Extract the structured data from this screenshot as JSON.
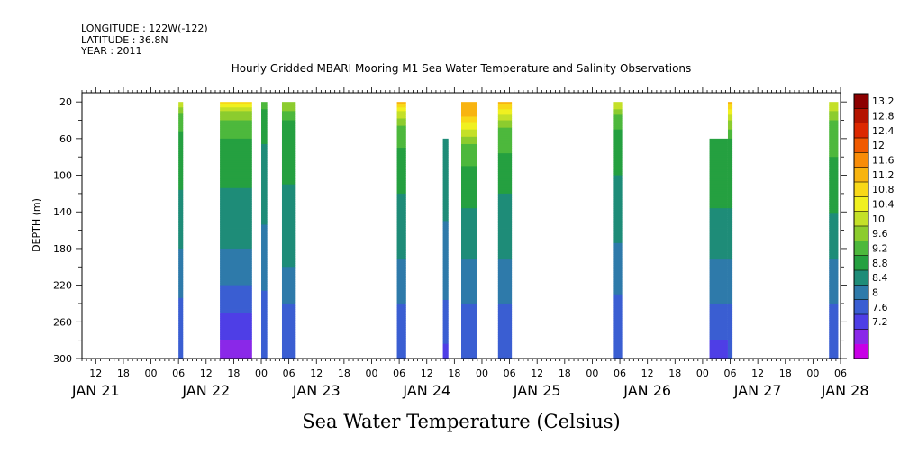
{
  "chart_data": {
    "type": "heatmap",
    "title": "Hourly Gridded MBARI Mooring M1 Sea Water Temperature and Salinity Observations",
    "header": [
      "LONGITUDE : 122W(-122)",
      "LATITUDE : 36.8N",
      "YEAR : 2011"
    ],
    "xlabel": "Sea Water Temperature (Celsius)",
    "ylabel": "DEPTH (m)",
    "x_start_hour": 9,
    "x_end_hour": 174,
    "hour_ticks": [
      {
        "h": 12,
        "label": "12"
      },
      {
        "h": 18,
        "label": "18"
      },
      {
        "h": 24,
        "label": "00"
      },
      {
        "h": 30,
        "label": "06"
      },
      {
        "h": 36,
        "label": "12"
      },
      {
        "h": 42,
        "label": "18"
      },
      {
        "h": 48,
        "label": "00"
      },
      {
        "h": 54,
        "label": "06"
      },
      {
        "h": 60,
        "label": "12"
      },
      {
        "h": 66,
        "label": "18"
      },
      {
        "h": 72,
        "label": "00"
      },
      {
        "h": 78,
        "label": "06"
      },
      {
        "h": 84,
        "label": "12"
      },
      {
        "h": 90,
        "label": "18"
      },
      {
        "h": 96,
        "label": "00"
      },
      {
        "h": 102,
        "label": "06"
      },
      {
        "h": 108,
        "label": "12"
      },
      {
        "h": 114,
        "label": "18"
      },
      {
        "h": 120,
        "label": "00"
      },
      {
        "h": 126,
        "label": "06"
      },
      {
        "h": 132,
        "label": "12"
      },
      {
        "h": 138,
        "label": "18"
      },
      {
        "h": 144,
        "label": "00"
      },
      {
        "h": 150,
        "label": "06"
      },
      {
        "h": 156,
        "label": "12"
      },
      {
        "h": 162,
        "label": "18"
      },
      {
        "h": 168,
        "label": "00"
      },
      {
        "h": 174,
        "label": "06"
      }
    ],
    "day_labels": [
      {
        "h": 12,
        "label": "JAN 21"
      },
      {
        "h": 36,
        "label": "JAN 22"
      },
      {
        "h": 60,
        "label": "JAN 23"
      },
      {
        "h": 84,
        "label": "JAN 24"
      },
      {
        "h": 108,
        "label": "JAN 25"
      },
      {
        "h": 132,
        "label": "JAN 26"
      },
      {
        "h": 156,
        "label": "JAN 27"
      },
      {
        "h": 175,
        "label": "JAN 28"
      }
    ],
    "y_ticks": [
      20,
      60,
      100,
      140,
      180,
      220,
      260,
      300
    ],
    "y_range": [
      10,
      300
    ],
    "levels": [
      7.2,
      7.6,
      8,
      8.4,
      8.8,
      9.2,
      9.6,
      10,
      10.4,
      10.8,
      11.2,
      11.6,
      12,
      12.4,
      12.8,
      13.2
    ],
    "colorbar_labels": [
      "13.2",
      "12.8",
      "12.4",
      "12",
      "11.6",
      "11.2",
      "10.8",
      "10.4",
      "10",
      "9.6",
      "9.2",
      "8.8",
      "8.4",
      "8",
      "7.6",
      "7.2"
    ],
    "colors": [
      "#c800e6",
      "#8a28e8",
      "#4e3ee6",
      "#3a5ed2",
      "#2e7aaa",
      "#1e8c78",
      "#25a040",
      "#4db83c",
      "#8ccc2e",
      "#c4e028",
      "#f0f020",
      "#f8d818",
      "#f8b410",
      "#f88c08",
      "#f05a00",
      "#dc2800",
      "#b41400",
      "#8c0000"
    ],
    "columns": [
      {
        "h0": 30.0,
        "h1": 31.0,
        "top": 20,
        "profile": [
          [
            20,
            10.8
          ],
          [
            35,
            9.8
          ],
          [
            60,
            9.5
          ],
          [
            90,
            9.3
          ],
          [
            140,
            9.1
          ],
          [
            180,
            8.8
          ],
          [
            220,
            8.5
          ],
          [
            260,
            8.2
          ],
          [
            300,
            8.0
          ]
        ]
      },
      {
        "h0": 39.0,
        "h1": 46.0,
        "top": 20,
        "profile": [
          [
            20,
            11.5
          ],
          [
            30,
            10.3
          ],
          [
            50,
            9.7
          ],
          [
            80,
            9.4
          ],
          [
            130,
            9.1
          ],
          [
            180,
            8.8
          ],
          [
            220,
            8.4
          ],
          [
            250,
            8.0
          ],
          [
            280,
            7.6
          ],
          [
            300,
            7.4
          ]
        ]
      },
      {
        "h0": 48.0,
        "h1": 49.3,
        "top": 20,
        "profile": [
          [
            20,
            9.7
          ],
          [
            50,
            9.3
          ],
          [
            100,
            9.0
          ],
          [
            180,
            8.7
          ],
          [
            240,
            8.3
          ],
          [
            300,
            8.0
          ]
        ]
      },
      {
        "h0": 52.5,
        "h1": 55.5,
        "top": 20,
        "profile": [
          [
            20,
            10.4
          ],
          [
            40,
            9.6
          ],
          [
            80,
            9.3
          ],
          [
            140,
            9.1
          ],
          [
            200,
            8.8
          ],
          [
            250,
            8.3
          ],
          [
            300,
            8.0
          ]
        ]
      },
      {
        "h0": 77.5,
        "h1": 79.5,
        "top": 20,
        "profile": [
          [
            20,
            11.8
          ],
          [
            30,
            10.8
          ],
          [
            50,
            9.8
          ],
          [
            100,
            9.3
          ],
          [
            180,
            8.9
          ],
          [
            240,
            8.4
          ],
          [
            300,
            8.0
          ]
        ]
      },
      {
        "h0": 87.5,
        "h1": 88.7,
        "top": 60,
        "profile": [
          [
            60,
            9.1
          ],
          [
            150,
            8.8
          ],
          [
            220,
            8.5
          ],
          [
            280,
            8.1
          ],
          [
            300,
            7.6
          ]
        ]
      },
      {
        "h0": 91.5,
        "h1": 95.0,
        "top": 20,
        "profile": [
          [
            20,
            12.0
          ],
          [
            35,
            11.6
          ],
          [
            50,
            10.8
          ],
          [
            70,
            9.8
          ],
          [
            120,
            9.3
          ],
          [
            180,
            8.9
          ],
          [
            240,
            8.4
          ],
          [
            300,
            8.0
          ]
        ]
      },
      {
        "h0": 99.5,
        "h1": 102.5,
        "top": 20,
        "profile": [
          [
            20,
            11.8
          ],
          [
            30,
            11.0
          ],
          [
            50,
            9.9
          ],
          [
            100,
            9.3
          ],
          [
            180,
            8.9
          ],
          [
            240,
            8.4
          ],
          [
            300,
            8.0
          ]
        ]
      },
      {
        "h0": 124.5,
        "h1": 126.5,
        "top": 20,
        "profile": [
          [
            20,
            10.8
          ],
          [
            40,
            9.7
          ],
          [
            80,
            9.3
          ],
          [
            160,
            8.9
          ],
          [
            230,
            8.4
          ],
          [
            300,
            8.0
          ]
        ]
      },
      {
        "h0": 145.5,
        "h1": 149.5,
        "top": 60,
        "profile": [
          [
            60,
            9.6
          ],
          [
            80,
            9.5
          ],
          [
            120,
            9.3
          ],
          [
            180,
            8.9
          ],
          [
            240,
            8.4
          ],
          [
            280,
            8.0
          ],
          [
            300,
            7.9
          ]
        ]
      },
      {
        "h0": 149.5,
        "h1": 150.5,
        "top": 20,
        "profile": [
          [
            20,
            11.8
          ],
          [
            40,
            10.4
          ],
          [
            60,
            9.6
          ],
          [
            120,
            9.3
          ],
          [
            180,
            8.9
          ],
          [
            240,
            8.4
          ],
          [
            300,
            8.0
          ]
        ]
      },
      {
        "h0": 171.5,
        "h1": 173.5,
        "top": 20,
        "profile": [
          [
            20,
            10.8
          ],
          [
            40,
            10.0
          ],
          [
            80,
            9.6
          ],
          [
            130,
            9.3
          ],
          [
            180,
            8.9
          ],
          [
            240,
            8.4
          ],
          [
            300,
            8.0
          ]
        ]
      }
    ]
  }
}
